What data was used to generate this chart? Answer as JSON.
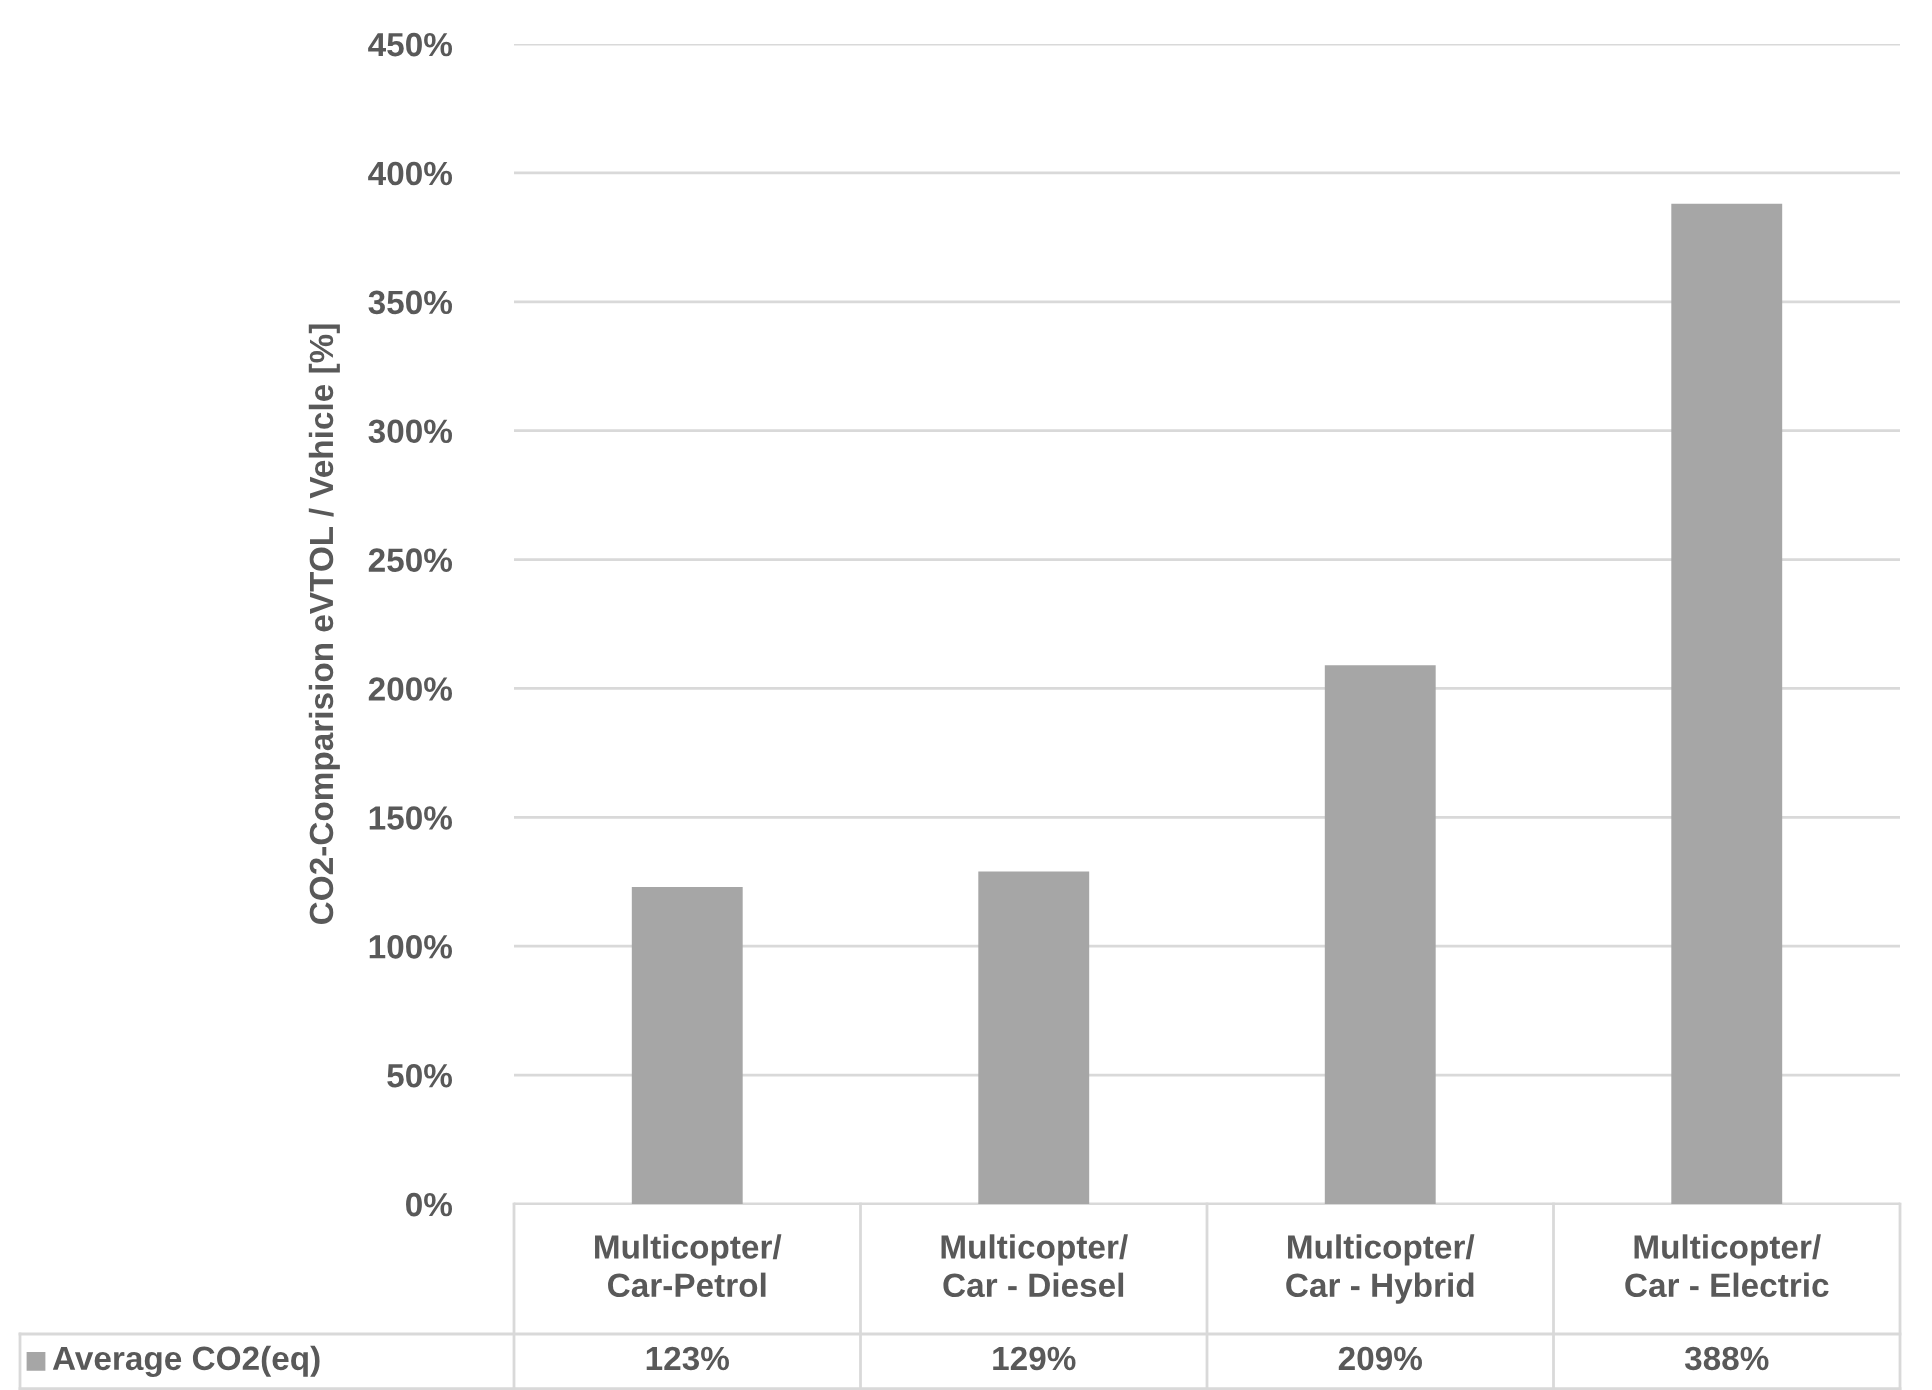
{
  "chart_data": {
    "type": "bar",
    "ylabel": "CO2-Comparision eVTOL / Vehicle [%]",
    "categories": [
      "Multicopter/\nCar-Petrol",
      "Multicopter/\nCar - Diesel",
      "Multicopter/\nCar - Hybrid",
      "Multicopter/\nCar - Electric"
    ],
    "series": [
      {
        "name": "Average CO2(eq)",
        "color": "#a6a6a6",
        "values": [
          123,
          129,
          209,
          388
        ],
        "value_labels": [
          "123%",
          "129%",
          "209%",
          "388%"
        ]
      }
    ],
    "ylim": [
      0,
      450
    ],
    "yticks": [
      {
        "value": 0,
        "label": "0%"
      },
      {
        "value": 50,
        "label": "50%"
      },
      {
        "value": 100,
        "label": "100%"
      },
      {
        "value": 150,
        "label": "150%"
      },
      {
        "value": 200,
        "label": "200%"
      },
      {
        "value": 250,
        "label": "250%"
      },
      {
        "value": 300,
        "label": "300%"
      },
      {
        "value": 350,
        "label": "350%"
      },
      {
        "value": 400,
        "label": "400%"
      },
      {
        "value": 450,
        "label": "450%"
      }
    ],
    "grid": "y",
    "legend": "bottom"
  }
}
